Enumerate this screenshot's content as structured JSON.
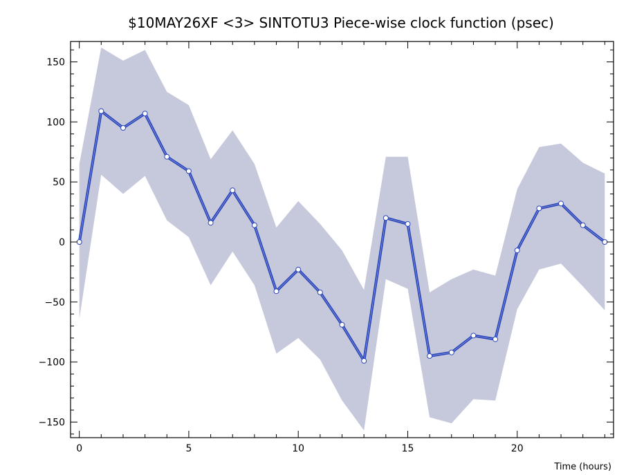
{
  "chart_data": {
    "type": "line",
    "title": "$10MAY26XF <3>  SINTOTU3  Piece-wise clock function (psec)",
    "xlabel": "Time (hours)",
    "ylabel": "",
    "xlim": [
      -0.4,
      24.4
    ],
    "ylim": [
      -163,
      167
    ],
    "x_ticks": [
      0,
      5,
      10,
      15,
      20
    ],
    "y_ticks": [
      150,
      100,
      50,
      0,
      -50,
      -100,
      -150
    ],
    "grid": false,
    "colors": {
      "line": "#2a44b8",
      "band": "#c5c9db",
      "marker_fill": "#ffffff"
    },
    "x": [
      0,
      1,
      2,
      3,
      4,
      5,
      6,
      7,
      8,
      9,
      10,
      11,
      12,
      13,
      14,
      15,
      16,
      17,
      18,
      19,
      20,
      21,
      22,
      23,
      24
    ],
    "series": [
      {
        "values": [
          0,
          109,
          95,
          107,
          71,
          59,
          16,
          43,
          14,
          -41,
          -23,
          -42,
          -69,
          -99,
          20,
          15,
          -95,
          -92,
          -78,
          -81,
          -7,
          28,
          32,
          14,
          0
        ]
      }
    ],
    "band_upper": [
      65,
      162,
      151,
      160,
      125,
      114,
      69,
      93,
      65,
      12,
      34,
      15,
      -7,
      -40,
      71,
      71,
      -42,
      -31,
      -23,
      -28,
      44,
      79,
      82,
      66,
      57
    ],
    "band_lower": [
      -64,
      56,
      40,
      55,
      18,
      4,
      -36,
      -8,
      -36,
      -93,
      -80,
      -98,
      -132,
      -157,
      -31,
      -39,
      -146,
      -151,
      -131,
      -132,
      -56,
      -23,
      -18,
      -37,
      -57
    ]
  }
}
